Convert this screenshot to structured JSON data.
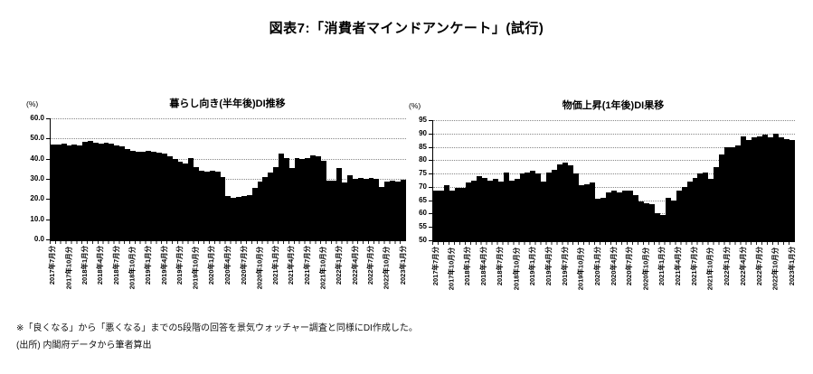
{
  "page": {
    "title": "図表7:「消費者マインドアンケート」(試行)",
    "footnotes": [
      "※「良くなる」から「悪くなる」までの5段階の回答を景気ウォッチャー調査と同様にDI作成した。",
      "(出所) 内閣府データから筆者算出"
    ]
  },
  "chart_data": [
    {
      "type": "bar",
      "title": "暮らし向き(半年後)DI推移",
      "unit_label": "(%)",
      "bar_color": "#000000",
      "ylim": [
        0,
        60
      ],
      "ytick_labels": [
        "60.0",
        "50.0",
        "40.0",
        "30.0",
        "20.0",
        "10.0",
        "0.0"
      ],
      "grid": true,
      "legend": "none",
      "x_tick_every": 3,
      "x_tick_labels": [
        "2017年7月分",
        "2017年10月分",
        "2018年1月分",
        "2018年4月分",
        "2018年7月分",
        "2018年10月分",
        "2019年1月分",
        "2019年4月分",
        "2019年7月分",
        "2019年10月分",
        "2020年1月分",
        "2020年4月分",
        "2020年7月分",
        "2020年10月分",
        "2021年1月分",
        "2021年4月分",
        "2021年7月分",
        "2021年10月分",
        "2022年1月分",
        "2022年4月分",
        "2022年7月分",
        "2022年10月分",
        "2023年1月分"
      ],
      "months": [
        "2017-07",
        "2017-08",
        "2017-09",
        "2017-10",
        "2017-11",
        "2017-12",
        "2018-01",
        "2018-02",
        "2018-03",
        "2018-04",
        "2018-05",
        "2018-06",
        "2018-07",
        "2018-08",
        "2018-09",
        "2018-10",
        "2018-11",
        "2018-12",
        "2019-01",
        "2019-02",
        "2019-03",
        "2019-04",
        "2019-05",
        "2019-06",
        "2019-07",
        "2019-08",
        "2019-09",
        "2019-10",
        "2019-11",
        "2019-12",
        "2020-01",
        "2020-02",
        "2020-03",
        "2020-04",
        "2020-05",
        "2020-06",
        "2020-07",
        "2020-08",
        "2020-09",
        "2020-10",
        "2020-11",
        "2020-12",
        "2021-01",
        "2021-02",
        "2021-03",
        "2021-04",
        "2021-05",
        "2021-06",
        "2021-07",
        "2021-08",
        "2021-09",
        "2021-10",
        "2021-11",
        "2021-12",
        "2022-01",
        "2022-02",
        "2022-03",
        "2022-04",
        "2022-05",
        "2022-06",
        "2022-07",
        "2022-08",
        "2022-09",
        "2022-10",
        "2022-11",
        "2022-12",
        "2023-01"
      ],
      "values": [
        47,
        47,
        47.5,
        46.5,
        47,
        46.5,
        48.5,
        49,
        48,
        47.5,
        48,
        47.5,
        46.5,
        46,
        45,
        44,
        43.5,
        43.5,
        44,
        43.5,
        43,
        42.5,
        41,
        40,
        38.5,
        37.5,
        40.5,
        36,
        34,
        33.5,
        34,
        33.5,
        31,
        21.5,
        20.5,
        21,
        21.5,
        22,
        25.5,
        28.5,
        31,
        33,
        36,
        42.5,
        40.5,
        35.5,
        40.5,
        40,
        40.5,
        41.5,
        41,
        39,
        29,
        29,
        35.5,
        28,
        32,
        30,
        30.5,
        30,
        30.5,
        30,
        26,
        28.5,
        29,
        28.5,
        29.5
      ]
    },
    {
      "type": "bar",
      "title": "物価上昇(1年後)DI果移",
      "unit_label": "(%)",
      "bar_color": "#000000",
      "ylim": [
        50,
        95
      ],
      "ytick_labels": [
        "95",
        "90",
        "85",
        "80",
        "75",
        "70",
        "65",
        "60",
        "55",
        "50"
      ],
      "grid": true,
      "legend": "none",
      "x_tick_every": 3,
      "x_tick_labels": [
        "2017年7月分",
        "2017年10月分",
        "2018年1月分",
        "2018年4月分",
        "2018年7月分",
        "2018年10月分",
        "2019年1月分",
        "2019年4月分",
        "2019年7月分",
        "2019年10月分",
        "2020年1月分",
        "2020年4月分",
        "2020年7月分",
        "2020年10月分",
        "2021年1月分",
        "2021年4月分",
        "2021年7月分",
        "2021年10月分",
        "2022年1月分",
        "2022年4月分",
        "2022年7月分",
        "2022年10月分",
        "2023年1月分"
      ],
      "months": [
        "2017-07",
        "2017-08",
        "2017-09",
        "2017-10",
        "2017-11",
        "2017-12",
        "2018-01",
        "2018-02",
        "2018-03",
        "2018-04",
        "2018-05",
        "2018-06",
        "2018-07",
        "2018-08",
        "2018-09",
        "2018-10",
        "2018-11",
        "2018-12",
        "2019-01",
        "2019-02",
        "2019-03",
        "2019-04",
        "2019-05",
        "2019-06",
        "2019-07",
        "2019-08",
        "2019-09",
        "2019-10",
        "2019-11",
        "2019-12",
        "2020-01",
        "2020-02",
        "2020-03",
        "2020-04",
        "2020-05",
        "2020-06",
        "2020-07",
        "2020-08",
        "2020-09",
        "2020-10",
        "2020-11",
        "2020-12",
        "2021-01",
        "2021-02",
        "2021-03",
        "2021-04",
        "2021-05",
        "2021-06",
        "2021-07",
        "2021-08",
        "2021-09",
        "2021-10",
        "2021-11",
        "2021-12",
        "2022-01",
        "2022-02",
        "2022-03",
        "2022-04",
        "2022-05",
        "2022-06",
        "2022-07",
        "2022-08",
        "2022-09",
        "2022-10",
        "2022-11",
        "2022-12",
        "2023-01"
      ],
      "values": [
        68.5,
        68.5,
        70.5,
        68.5,
        69.5,
        69.5,
        71.5,
        72.5,
        74,
        73.5,
        72.5,
        73,
        72,
        75.5,
        72.5,
        73,
        75,
        75.5,
        76,
        75,
        72,
        75.5,
        76.5,
        78.5,
        79,
        78,
        75,
        70.5,
        71,
        71.5,
        65.5,
        66,
        68,
        68.5,
        68,
        68.5,
        68.5,
        67,
        64.5,
        64,
        63.5,
        60,
        59.5,
        66,
        65,
        68.5,
        70,
        72,
        73.5,
        75,
        75.5,
        73,
        77.5,
        82,
        85,
        85,
        85.5,
        89,
        87.5,
        88.5,
        89,
        89.5,
        88.5,
        90,
        88.5,
        88,
        87.5
      ]
    }
  ]
}
